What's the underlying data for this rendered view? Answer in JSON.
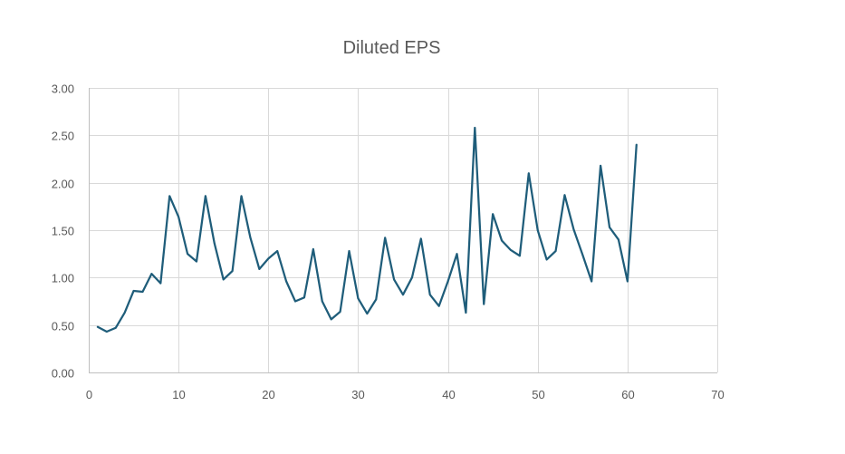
{
  "chart_data": {
    "type": "line",
    "title": "Diluted EPS",
    "xlabel": "",
    "ylabel": "",
    "xlim": [
      0,
      70
    ],
    "ylim": [
      0,
      3
    ],
    "x_ticks": [
      0,
      10,
      20,
      30,
      40,
      50,
      60,
      70
    ],
    "y_ticks": [
      "0.00",
      "0.50",
      "1.00",
      "1.50",
      "2.00",
      "2.50",
      "3.00"
    ],
    "grid": true,
    "legend": "none",
    "series_color": "#1f5d7a",
    "series": [
      {
        "x": [
          1,
          2,
          3,
          4,
          5,
          6,
          7,
          8,
          9,
          10,
          11,
          12,
          13,
          14,
          15,
          16,
          17,
          18,
          19,
          20,
          21,
          22,
          23,
          24,
          25,
          26,
          27,
          28,
          29,
          30,
          31,
          32,
          33,
          34,
          35,
          36,
          37,
          38,
          39,
          40,
          41,
          42,
          43,
          44,
          45,
          46,
          47,
          48,
          49,
          50,
          51,
          52,
          53,
          54,
          55,
          56,
          57,
          58,
          59,
          60,
          61
        ],
        "values": [
          0.48,
          0.43,
          0.47,
          0.63,
          0.86,
          0.85,
          1.04,
          0.94,
          1.86,
          1.64,
          1.25,
          1.17,
          1.86,
          1.36,
          0.98,
          1.07,
          1.86,
          1.42,
          1.09,
          1.2,
          1.28,
          0.96,
          0.75,
          0.79,
          1.3,
          0.75,
          0.56,
          0.64,
          1.28,
          0.78,
          0.62,
          0.77,
          1.42,
          0.98,
          0.82,
          1.0,
          1.41,
          0.82,
          0.7,
          0.96,
          1.25,
          0.63,
          2.58,
          0.72,
          1.67,
          1.39,
          1.29,
          1.23,
          2.1,
          1.5,
          1.19,
          1.28,
          1.87,
          1.51,
          1.24,
          0.96,
          2.18,
          1.53,
          1.4,
          0.96,
          2.4
        ]
      }
    ]
  }
}
